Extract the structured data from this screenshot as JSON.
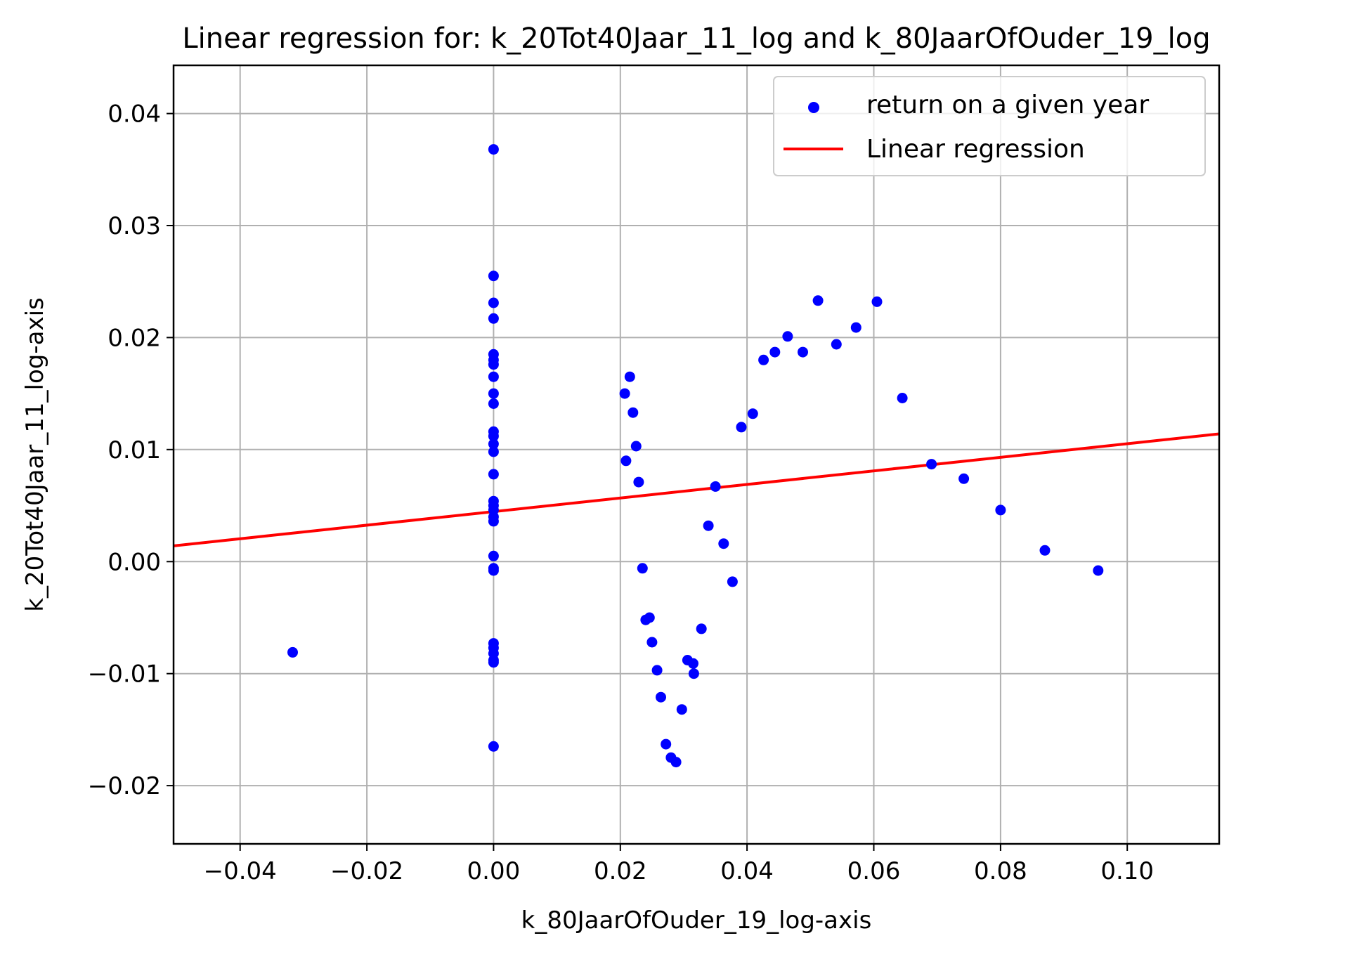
{
  "chart_data": {
    "type": "scatter",
    "title": "Linear regression for: k_20Tot40Jaar_11_log and k_80JaarOfOuder_19_log",
    "xlabel": "k_80JaarOfOuder_19_log-axis",
    "ylabel": "k_20Tot40Jaar_11_log-axis",
    "xlim": [
      -0.0505,
      0.1145
    ],
    "ylim": [
      -0.0252,
      0.0443
    ],
    "xticks": [
      -0.04,
      -0.02,
      0.0,
      0.02,
      0.04,
      0.06,
      0.08,
      0.1
    ],
    "xtick_labels": [
      "−0.04",
      "−0.02",
      "0.00",
      "0.02",
      "0.04",
      "0.06",
      "0.08",
      "0.10"
    ],
    "yticks": [
      -0.02,
      -0.01,
      0.0,
      0.01,
      0.02,
      0.03,
      0.04
    ],
    "ytick_labels": [
      "−0.02",
      "−0.01",
      "0.00",
      "0.01",
      "0.02",
      "0.03",
      "0.04"
    ],
    "grid": true,
    "legend_position": "top-right",
    "series": [
      {
        "name": "return on a given year",
        "kind": "scatter",
        "color": "#0000ff",
        "points": [
          [
            0.0,
            0.0368
          ],
          [
            0.0,
            0.0255
          ],
          [
            0.0,
            0.0231
          ],
          [
            0.0,
            0.0217
          ],
          [
            0.0,
            0.0185
          ],
          [
            0.0,
            0.018
          ],
          [
            0.0,
            0.0176
          ],
          [
            0.0,
            0.0165
          ],
          [
            0.0,
            0.015
          ],
          [
            0.0,
            0.0141
          ],
          [
            0.0,
            0.0116
          ],
          [
            0.0,
            0.0112
          ],
          [
            0.0,
            0.0105
          ],
          [
            0.0,
            0.0098
          ],
          [
            0.0,
            0.0078
          ],
          [
            0.0,
            0.0054
          ],
          [
            0.0,
            0.005
          ],
          [
            0.0,
            0.0046
          ],
          [
            0.0,
            0.004
          ],
          [
            0.0,
            0.0036
          ],
          [
            0.0,
            0.0005
          ],
          [
            0.0,
            -0.0006
          ],
          [
            0.0,
            -0.0008
          ],
          [
            0.0,
            -0.0073
          ],
          [
            0.0,
            -0.0077
          ],
          [
            0.0,
            -0.0082
          ],
          [
            0.0,
            -0.0088
          ],
          [
            0.0,
            -0.009
          ],
          [
            0.0,
            -0.0165
          ],
          [
            -0.0317,
            -0.0081
          ],
          [
            0.0207,
            0.015
          ],
          [
            0.0215,
            0.0165
          ],
          [
            0.022,
            0.0133
          ],
          [
            0.0225,
            0.0103
          ],
          [
            0.0209,
            0.009
          ],
          [
            0.0229,
            0.0071
          ],
          [
            0.0235,
            -0.0006
          ],
          [
            0.024,
            -0.0052
          ],
          [
            0.0246,
            -0.005
          ],
          [
            0.025,
            -0.0072
          ],
          [
            0.0258,
            -0.0097
          ],
          [
            0.0264,
            -0.0121
          ],
          [
            0.0272,
            -0.0163
          ],
          [
            0.028,
            -0.0175
          ],
          [
            0.0288,
            -0.0179
          ],
          [
            0.0297,
            -0.0132
          ],
          [
            0.0306,
            -0.0088
          ],
          [
            0.0315,
            -0.0091
          ],
          [
            0.0316,
            -0.01
          ],
          [
            0.0328,
            -0.006
          ],
          [
            0.0339,
            0.0032
          ],
          [
            0.035,
            0.0067
          ],
          [
            0.0363,
            0.0016
          ],
          [
            0.0377,
            -0.0018
          ],
          [
            0.0391,
            0.012
          ],
          [
            0.0409,
            0.0132
          ],
          [
            0.0426,
            0.018
          ],
          [
            0.0444,
            0.0187
          ],
          [
            0.0464,
            0.0201
          ],
          [
            0.0488,
            0.0187
          ],
          [
            0.0512,
            0.0233
          ],
          [
            0.0541,
            0.0194
          ],
          [
            0.0572,
            0.0209
          ],
          [
            0.0605,
            0.0232
          ],
          [
            0.0645,
            0.0146
          ],
          [
            0.0691,
            0.0087
          ],
          [
            0.0742,
            0.0074
          ],
          [
            0.08,
            0.0046
          ],
          [
            0.087,
            0.001
          ],
          [
            0.0954,
            -0.0008
          ]
        ]
      },
      {
        "name": "Linear regression",
        "kind": "line",
        "color": "#ff0000",
        "points": [
          [
            -0.0505,
            0.0014
          ],
          [
            0.1145,
            0.0114
          ]
        ]
      }
    ]
  }
}
